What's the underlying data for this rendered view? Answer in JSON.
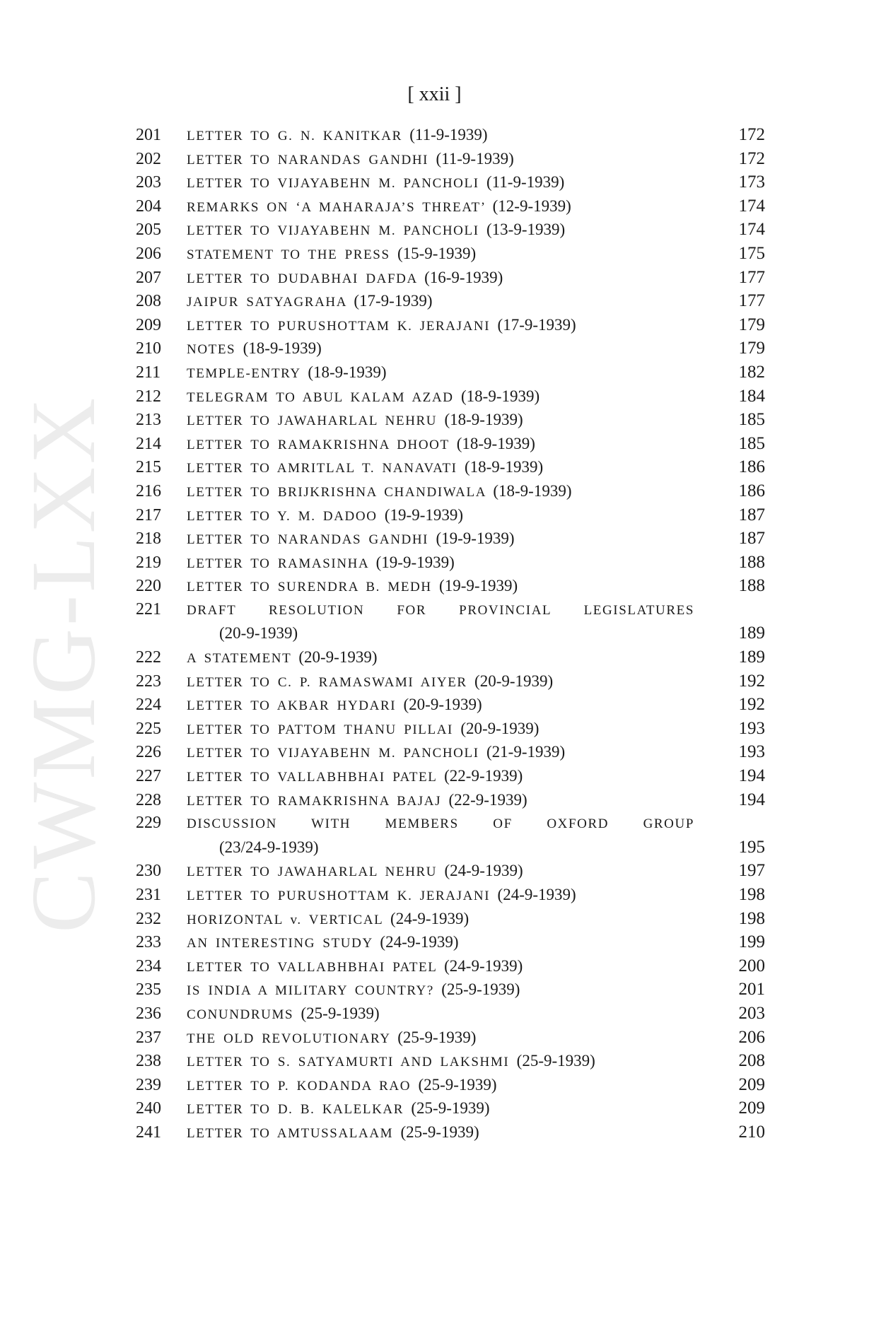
{
  "watermark": "CWMG-LXX",
  "page_number": "[ xxii ]",
  "entries": [
    {
      "n": "201",
      "title": "LETTER TO G. N. KANITKAR",
      "date": "(11-9-1939)",
      "page": "172"
    },
    {
      "n": "202",
      "title": "LETTER TO NARANDAS GANDHI",
      "date": "(11-9-1939)",
      "page": "172"
    },
    {
      "n": "203",
      "title": "LETTER TO VIJAYABEHN M. PANCHOLI",
      "date": "(11-9-1939)",
      "page": "173"
    },
    {
      "n": "204",
      "title": "REMARKS ON ‘A MAHARAJA’S THREAT’",
      "date": "(12-9-1939)",
      "page": "174"
    },
    {
      "n": "205",
      "title": "LETTER TO VIJAYABEHN M. PANCHOLI",
      "date": "(13-9-1939)",
      "page": "174"
    },
    {
      "n": "206",
      "title": "STATEMENT TO THE PRESS",
      "date": "(15-9-1939)",
      "page": "175"
    },
    {
      "n": "207",
      "title": "LETTER TO DUDABHAI DAFDA",
      "date": "(16-9-1939)",
      "page": "177"
    },
    {
      "n": "208",
      "title": "JAIPUR SATYAGRAHA",
      "date": "(17-9-1939)",
      "page": "177"
    },
    {
      "n": "209",
      "title": "LETTER TO PURUSHOTTAM K. JERAJANI",
      "date": "(17-9-1939)",
      "page": "179"
    },
    {
      "n": "210",
      "title": "NOTES",
      "date": "(18-9-1939)",
      "page": "179"
    },
    {
      "n": "211",
      "title": "TEMPLE-ENTRY",
      "date": "(18-9-1939)",
      "page": "182"
    },
    {
      "n": "212",
      "title": "TELEGRAM TO ABUL KALAM AZAD",
      "date": "(18-9-1939)",
      "page": "184"
    },
    {
      "n": "213",
      "title": "LETTER TO JAWAHARLAL NEHRU",
      "date": "(18-9-1939)",
      "page": "185"
    },
    {
      "n": "214",
      "title": "LETTER TO RAMAKRISHNA DHOOT",
      "date": "(18-9-1939)",
      "page": "185"
    },
    {
      "n": "215",
      "title": "LETTER TO AMRITLAL T. NANAVATI",
      "date": "(18-9-1939)",
      "page": "186"
    },
    {
      "n": "216",
      "title": "LETTER TO BRIJKRISHNA CHANDIWALA",
      "date": "(18-9-1939)",
      "page": "186"
    },
    {
      "n": "217",
      "title": "LETTER TO Y. M. DADOO",
      "date": "(19-9-1939)",
      "page": "187"
    },
    {
      "n": "218",
      "title": "LETTER TO NARANDAS GANDHI",
      "date": "(19-9-1939)",
      "page": "187"
    },
    {
      "n": "219",
      "title": "LETTER TO RAMASINHA",
      "date": "(19-9-1939)",
      "page": "188"
    },
    {
      "n": "220",
      "title": "LETTER TO SURENDRA B. MEDH",
      "date": "(19-9-1939)",
      "page": "188"
    },
    {
      "n": "221",
      "title": "DRAFT RESOLUTION FOR PROVINCIAL LEGISLATURES",
      "date": "(20-9-1939)",
      "page": "189",
      "wrapped": true
    },
    {
      "n": "222",
      "title": "A STATEMENT",
      "date": "(20-9-1939)",
      "page": "189"
    },
    {
      "n": "223",
      "title": "LETTER TO C. P. RAMASWAMI AIYER",
      "date": "(20-9-1939)",
      "page": "192"
    },
    {
      "n": "224",
      "title": "LETTER TO AKBAR HYDARI",
      "date": "(20-9-1939)",
      "page": "192"
    },
    {
      "n": "225",
      "title": "LETTER TO PATTOM THANU PILLAI",
      "date": "(20-9-1939)",
      "page": "193"
    },
    {
      "n": "226",
      "title": "LETTER TO VIJAYABEHN M. PANCHOLI",
      "date": "(21-9-1939)",
      "page": "193"
    },
    {
      "n": "227",
      "title": "LETTER TO VALLABHBHAI PATEL",
      "date": "(22-9-1939)",
      "page": "194"
    },
    {
      "n": "228",
      "title": "LETTER TO RAMAKRISHNA BAJAJ",
      "date": "(22-9-1939)",
      "page": "194"
    },
    {
      "n": "229",
      "title": "DISCUSSION WITH MEMBERS OF OXFORD GROUP",
      "date": "(23/24-9-1939)",
      "page": "195",
      "wrapped": true
    },
    {
      "n": "230",
      "title": "LETTER TO JAWAHARLAL NEHRU",
      "date": "(24-9-1939)",
      "page": "197"
    },
    {
      "n": "231",
      "title": "LETTER TO PURUSHOTTAM K. JERAJANI",
      "date": "(24-9-1939)",
      "page": "198"
    },
    {
      "n": "232",
      "title": "HORIZONTAL v. VERTICAL",
      "date": "(24-9-1939)",
      "page": "198"
    },
    {
      "n": "233",
      "title": "AN INTERESTING STUDY",
      "date": "(24-9-1939)",
      "page": "199"
    },
    {
      "n": "234",
      "title": "LETTER TO VALLABHBHAI PATEL",
      "date": "(24-9-1939)",
      "page": "200"
    },
    {
      "n": "235",
      "title": "IS INDIA A MILITARY COUNTRY?",
      "date": "(25-9-1939)",
      "page": "201"
    },
    {
      "n": "236",
      "title": "CONUNDRUMS",
      "date": "(25-9-1939)",
      "page": "203"
    },
    {
      "n": "237",
      "title": "THE OLD REVOLUTIONARY",
      "date": "(25-9-1939)",
      "page": "206"
    },
    {
      "n": "238",
      "title": "LETTER TO S. SATYAMURTI AND LAKSHMI",
      "date": "(25-9-1939)",
      "page": "208"
    },
    {
      "n": "239",
      "title": "LETTER TO P. KODANDA RAO",
      "date": "(25-9-1939)",
      "page": "209"
    },
    {
      "n": "240",
      "title": "LETTER TO D. B. KALELKAR",
      "date": "(25-9-1939)",
      "page": "209"
    },
    {
      "n": "241",
      "title": "LETTER TO AMTUSSALAAM",
      "date": "(25-9-1939)",
      "page": "210"
    }
  ]
}
